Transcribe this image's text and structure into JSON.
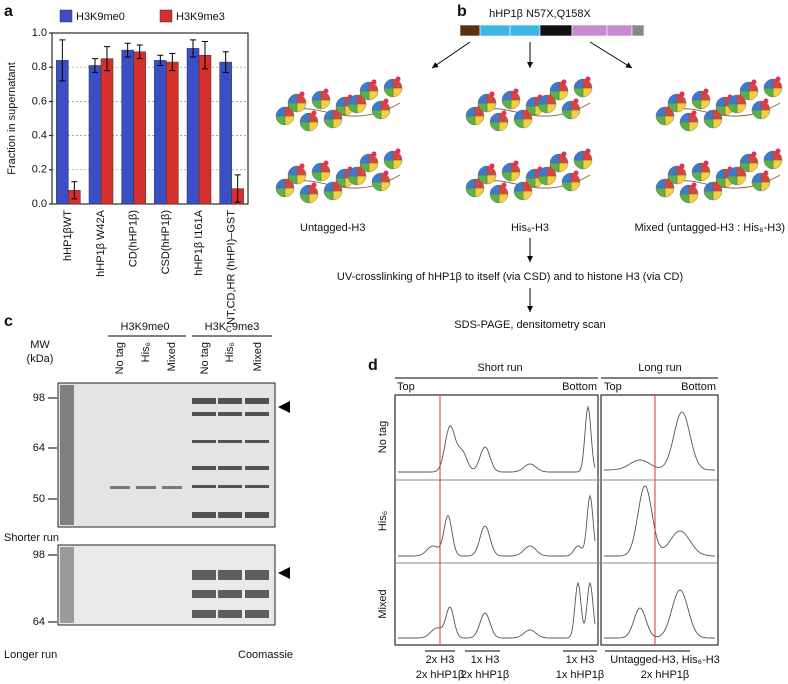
{
  "panel_labels": [
    "a",
    "b",
    "c",
    "d"
  ],
  "chart_data": {
    "type": "bar",
    "ylabel": "Fraction in supernatant",
    "categories": [
      "hHP1βWT",
      "hHP1β W42A",
      "CD(hHP1β)",
      "CSD(hHP1β)",
      "hHP1β I161A",
      "NT,CD,HR (hHPI)–GST"
    ],
    "series": [
      {
        "name": "H3K9me0",
        "color": "#3b4fc4",
        "values": [
          0.84,
          0.81,
          0.9,
          0.84,
          0.91,
          0.83
        ],
        "errors": [
          0.12,
          0.04,
          0.04,
          0.03,
          0.05,
          0.06
        ]
      },
      {
        "name": "H3K9me3",
        "color": "#d5302b",
        "values": [
          0.08,
          0.85,
          0.89,
          0.83,
          0.87,
          0.09
        ],
        "errors": [
          0.05,
          0.07,
          0.04,
          0.05,
          0.08,
          0.08
        ]
      }
    ],
    "ylim": [
      0,
      1
    ],
    "yticks": [
      {
        "value": 0,
        "label": "0.0"
      },
      0.2,
      0.4,
      0.6,
      0.8,
      {
        "value": 1,
        "label": "1.0"
      }
    ],
    "grid": true,
    "legend": "top"
  },
  "panel_b": {
    "construct": "hHP1β N57X,Q158X",
    "conditions": [
      "Untagged-H3",
      "His₆-H3",
      "Mixed (untagged-H3 : His₆-H3)"
    ],
    "steps": [
      "UV-crosslinking of hHP1β to itself (via CSD) and to histone H3 (via CD)",
      "SDS-PAGE, densitometry scan"
    ]
  },
  "panel_c": {
    "group_1": "H3K9me0",
    "group_2": {
      "main": "H3K",
      "sub": "C",
      "rest": "9me3"
    },
    "lanes": [
      "No tag",
      "His₆",
      "Mixed"
    ],
    "mw_title": [
      "MW",
      "(kDa)"
    ],
    "mw_upper": [
      98,
      64,
      50
    ],
    "mw_lower": [
      98,
      64
    ],
    "runs": [
      "Shorter run",
      "Longer run"
    ],
    "stain": "Coomassie"
  },
  "panel_d": {
    "runs": [
      "Short run",
      "Long run"
    ],
    "ends": [
      "Top",
      "Bottom"
    ],
    "rows": [
      "No tag",
      "His₆",
      "Mixed"
    ],
    "bands": [
      [
        "2x H3",
        "2x hHP1β"
      ],
      [
        "1x H3",
        "2x hHP1β"
      ],
      [
        "1x H3",
        "1x hHP1β"
      ],
      [
        "Untagged-H3, His₆-H3",
        "2x hHP1β"
      ]
    ]
  }
}
